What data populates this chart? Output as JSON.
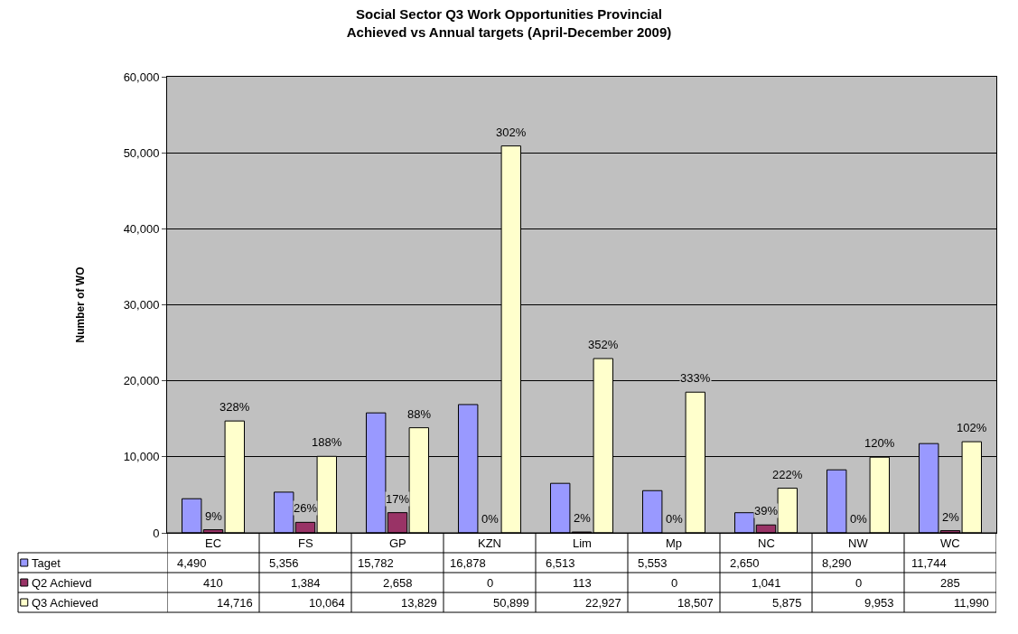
{
  "chart_data": {
    "type": "bar",
    "title": "Social Sector Q3 Work Opportunities Provincial\nAchieved vs Annual targets (April-December 2009)",
    "ylabel": "Number of WO",
    "categories": [
      "EC",
      "FS",
      "GP",
      "KZN",
      "Lim",
      "Mp",
      "NC",
      "NW",
      "WC"
    ],
    "series": [
      {
        "name": "Taget",
        "color": "#9999ff",
        "values": [
          4490,
          5356,
          15782,
          16878,
          6513,
          5553,
          2650,
          8290,
          11744
        ],
        "value_labels": [
          "4,490",
          "5,356",
          "15,782",
          "16,878",
          "6,513",
          "5,553",
          "2,650",
          "8,290",
          "11,744"
        ]
      },
      {
        "name": "Q2 Achievd",
        "color": "#993366",
        "values": [
          410,
          1384,
          2658,
          0,
          113,
          0,
          1041,
          0,
          285
        ],
        "value_labels": [
          "410",
          "1,384",
          "2,658",
          "0",
          "113",
          "0",
          "1,041",
          "0",
          "285"
        ]
      },
      {
        "name": "Q3 Achieved",
        "color": "#ffffcc",
        "values": [
          14716,
          10064,
          13829,
          50899,
          22927,
          18507,
          5875,
          9953,
          11990
        ],
        "value_labels": [
          "14,716",
          "10,064",
          "13,829",
          "50,899",
          "22,927",
          "18,507",
          "5,875",
          "9,953",
          "11,990"
        ]
      }
    ],
    "annotations": [
      "9%",
      "26%",
      "17%",
      "0%",
      "2%",
      "0%",
      "39%",
      "0%",
      "2%",
      "328%",
      "188%",
      "88%",
      "302%",
      "352%",
      "333%",
      "222%",
      "120%",
      "102%"
    ],
    "legend": "bottom left",
    "ylim": [
      0,
      60000
    ],
    "yticks": [
      0,
      {
        "value": 10000,
        "label": "10,000"
      },
      {
        "value": 20000,
        "label": "20,000"
      },
      {
        "value": 30000,
        "label": "30,000"
      },
      {
        "value": 40000,
        "label": "40,000"
      },
      {
        "value": 50000,
        "label": "50,000"
      },
      {
        "value": 60000,
        "label": "60,000"
      }
    ],
    "grid": "y"
  }
}
